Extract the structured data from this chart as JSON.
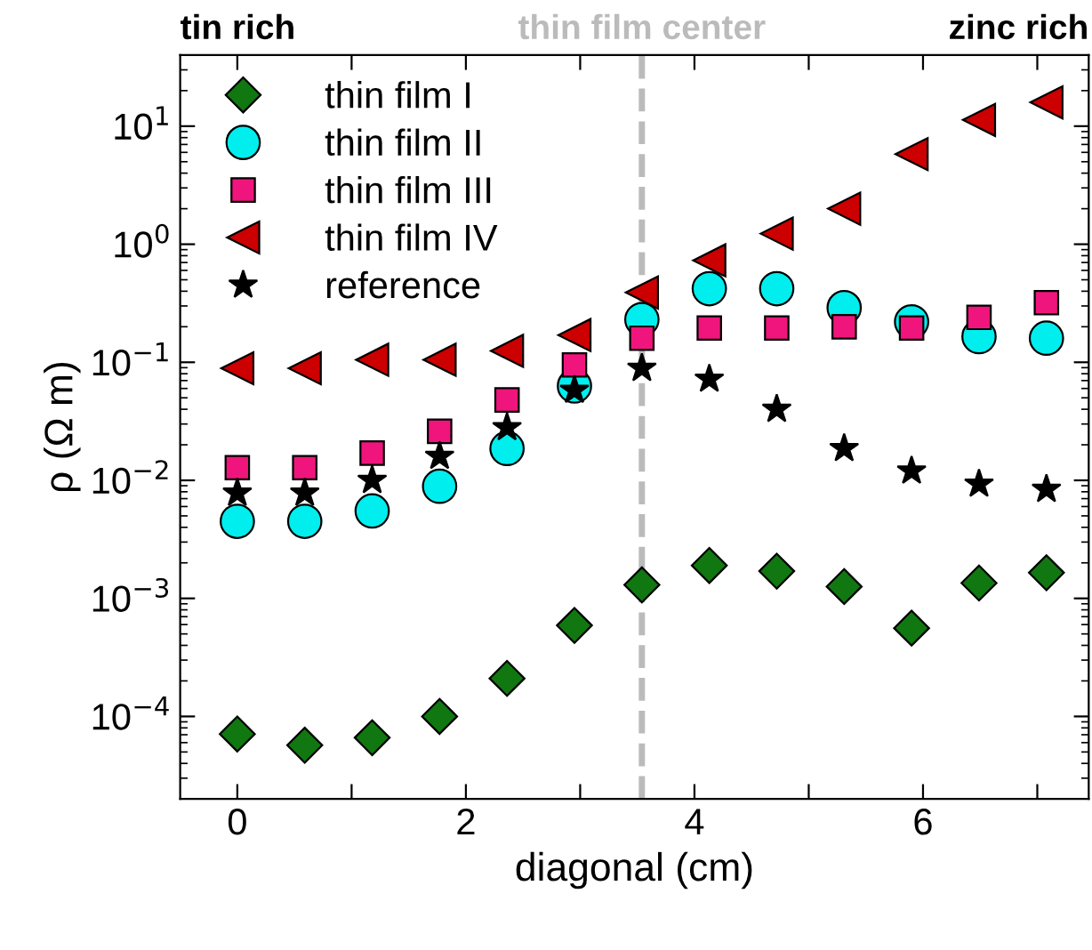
{
  "chart_data": {
    "type": "scatter",
    "xlabel": "diagonal (cm)",
    "ylabel": "ρ (Ω m)",
    "x": [
      0,
      0.59,
      1.18,
      1.77,
      2.36,
      2.95,
      3.54,
      4.13,
      4.72,
      5.31,
      5.9,
      6.49,
      7.08
    ],
    "series": [
      {
        "name": "thin film I",
        "color": "#117711",
        "marker": "diamond",
        "values": [
          7.1e-05,
          5.7e-05,
          6.6e-05,
          0.0001,
          0.00021,
          0.00059,
          0.0013,
          0.0019,
          0.0017,
          0.00126,
          0.00056,
          0.00135,
          0.00165
        ]
      },
      {
        "name": "thin film II",
        "color": "#00eeee",
        "marker": "circle",
        "values": [
          0.0045,
          0.0045,
          0.0055,
          0.0089,
          0.0186,
          0.063,
          0.23,
          0.42,
          0.42,
          0.29,
          0.22,
          0.165,
          0.16
        ]
      },
      {
        "name": "thin film III",
        "color": "#f0157d",
        "marker": "square",
        "values": [
          0.0128,
          0.0128,
          0.017,
          0.026,
          0.048,
          0.095,
          0.16,
          0.195,
          0.195,
          0.2,
          0.195,
          0.24,
          0.32
        ]
      },
      {
        "name": "thin film IV",
        "color": "#cc0000",
        "marker": "triangle",
        "values": [
          0.089,
          0.089,
          0.105,
          0.105,
          0.125,
          0.17,
          0.39,
          0.73,
          1.23,
          2.0,
          5.8,
          11.3,
          15.9
        ]
      },
      {
        "name": "reference",
        "color": "#000000",
        "marker": "star",
        "values": [
          0.0078,
          0.0078,
          0.01,
          0.016,
          0.028,
          0.058,
          0.089,
          0.072,
          0.04,
          0.0186,
          0.012,
          0.0093,
          0.0084
        ]
      }
    ],
    "log": "y",
    "xlim": [
      -0.5,
      7.45
    ],
    "xticks": [
      0,
      {
        "value": 1,
        "label": null
      },
      2,
      {
        "value": 3,
        "label": null
      },
      4,
      {
        "value": 5,
        "label": null
      },
      6,
      {
        "value": 7,
        "label": null
      }
    ],
    "ylim": [
      2e-05,
      40
    ],
    "yticks": [
      {
        "value": 0.0001,
        "label": "10$^{−4}$"
      },
      {
        "value": 0.001,
        "label": "10$^{−3}$"
      },
      {
        "value": 0.01,
        "label": "10$^{−2}$"
      },
      {
        "value": 0.1,
        "label": "10$^{−1}$"
      },
      {
        "value": 1,
        "label": "10$^{0}$"
      },
      {
        "value": 10,
        "label": "10$^{1}$"
      }
    ],
    "ref_lines": [
      {
        "axis": "x",
        "value": 3.54,
        "label": "thin film center",
        "color": "#bbbbbb",
        "line_style": "dashed"
      }
    ],
    "annotations": [
      "tin rich",
      "zinc rich"
    ],
    "legend": "top left",
    "grid": false
  }
}
